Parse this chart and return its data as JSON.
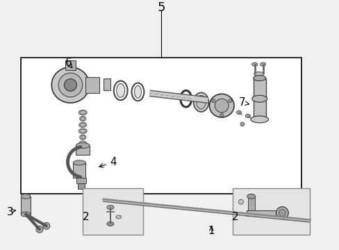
{
  "title": "5",
  "bg_color": "#f0f0f0",
  "white": "#ffffff",
  "black": "#000000",
  "label_1": "1",
  "label_2": "2",
  "label_3": "3",
  "label_4": "4",
  "label_5": "5",
  "label_6": "6",
  "label_7": "7",
  "fig_width": 4.89,
  "fig_height": 3.6,
  "dpi": 100
}
